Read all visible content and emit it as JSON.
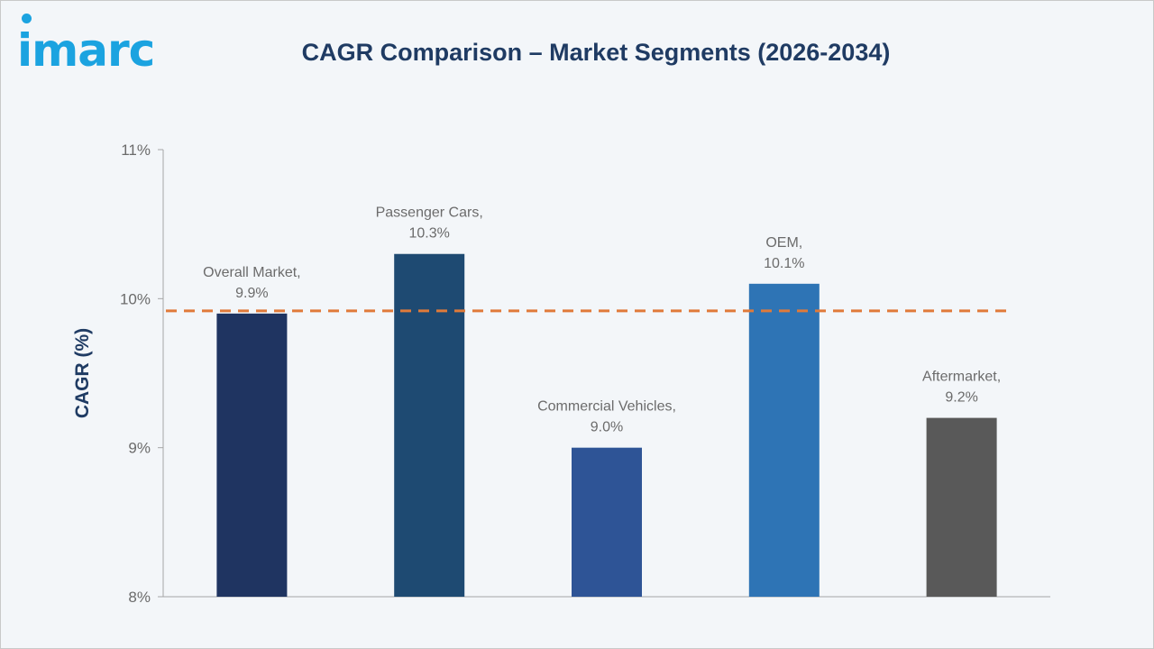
{
  "brand": {
    "logo_text": "imarc"
  },
  "chart_data": {
    "type": "bar",
    "title": "CAGR Comparison – Market Segments (2026-2034)",
    "ylabel": "CAGR (%)",
    "xlabel": "",
    "ylim": [
      8,
      11
    ],
    "yticks": [
      8,
      9,
      10,
      11
    ],
    "ytick_labels": [
      "8%",
      "9%",
      "10%",
      "11%"
    ],
    "categories": [
      "Overall Market",
      "Passenger Cars",
      "Commercial Vehicles",
      "OEM",
      "Aftermarket"
    ],
    "values": [
      9.9,
      10.3,
      9.0,
      10.1,
      9.2
    ],
    "data_labels": [
      [
        "Overall Market,",
        "9.9%"
      ],
      [
        "Passenger Cars,",
        "10.3%"
      ],
      [
        "Commercial Vehicles,",
        "9.0%"
      ],
      [
        "OEM,",
        "10.1%"
      ],
      [
        "Aftermarket,",
        "9.2%"
      ]
    ],
    "colors": [
      "#1f3461",
      "#1e4a72",
      "#2e5496",
      "#2e74b5",
      "#595959"
    ],
    "reference_line": {
      "value": 9.9,
      "style": "dashed",
      "color": "#e07a3a"
    },
    "grid": false,
    "legend": "none"
  }
}
